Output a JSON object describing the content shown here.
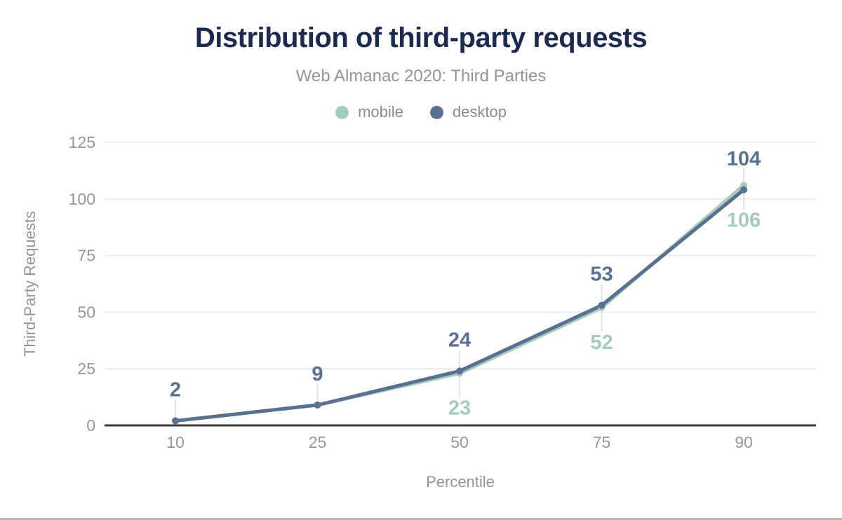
{
  "header": {
    "title": "Distribution of third-party requests",
    "subtitle": "Web Almanac 2020: Third Parties"
  },
  "legend": {
    "items": [
      {
        "label": "mobile",
        "color": "#a5ccb8",
        "swatch": "circle-swatch"
      },
      {
        "label": "desktop",
        "color": "#5a7090",
        "swatch": "circle-swatch"
      }
    ]
  },
  "chart_data": {
    "type": "line",
    "title": "Distribution of third-party requests",
    "subtitle": "Web Almanac 2020: Third Parties",
    "xlabel": "Percentile",
    "ylabel": "Third-Party Requests",
    "categories": [
      "10",
      "25",
      "50",
      "75",
      "90"
    ],
    "series": [
      {
        "name": "mobile",
        "color": "#a5ccb8",
        "values": [
          2,
          9,
          23,
          52,
          106
        ],
        "shown_labels": [
          "",
          "",
          "23",
          "52",
          "106"
        ],
        "label_position": "below"
      },
      {
        "name": "desktop",
        "color": "#5a7090",
        "values": [
          2,
          9,
          24,
          53,
          104
        ],
        "shown_labels": [
          "2",
          "9",
          "24",
          "53",
          "104"
        ],
        "label_position": "above"
      }
    ],
    "y_ticks": [
      0,
      25,
      50,
      75,
      100,
      125
    ],
    "ylim": [
      0,
      125
    ],
    "grid": "horizontal",
    "legend_position": "top",
    "colors": {
      "axis": "#3b3b3b",
      "grid": "#ececec",
      "tick_text": "#92979c",
      "leader_line": "#e2e2e2"
    }
  }
}
